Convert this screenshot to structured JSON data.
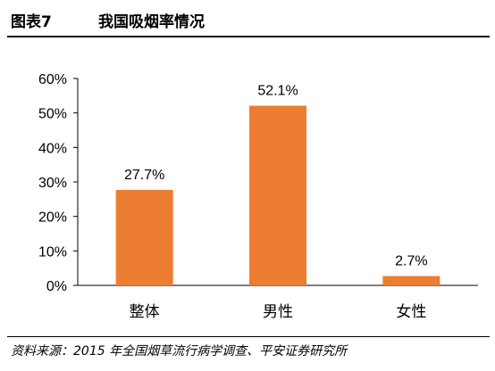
{
  "header": {
    "figure_label": "图表7",
    "title": "我国吸烟率情况"
  },
  "colors": {
    "bar": "#ED7D31",
    "axis": "#000000"
  },
  "chart_data": {
    "type": "bar",
    "categories": [
      "整体",
      "男性",
      "女性"
    ],
    "values": [
      27.7,
      52.1,
      2.7
    ],
    "value_labels": [
      "27.7%",
      "52.1%",
      "2.7%"
    ],
    "y_ticks": [
      "0%",
      "10%",
      "20%",
      "30%",
      "40%",
      "50%",
      "60%"
    ],
    "ylim": [
      0,
      60
    ],
    "grid": false,
    "legend": "none"
  },
  "footer": {
    "source": "资料来源：2015 年全国烟草流行病学调查、平安证券研究所"
  }
}
